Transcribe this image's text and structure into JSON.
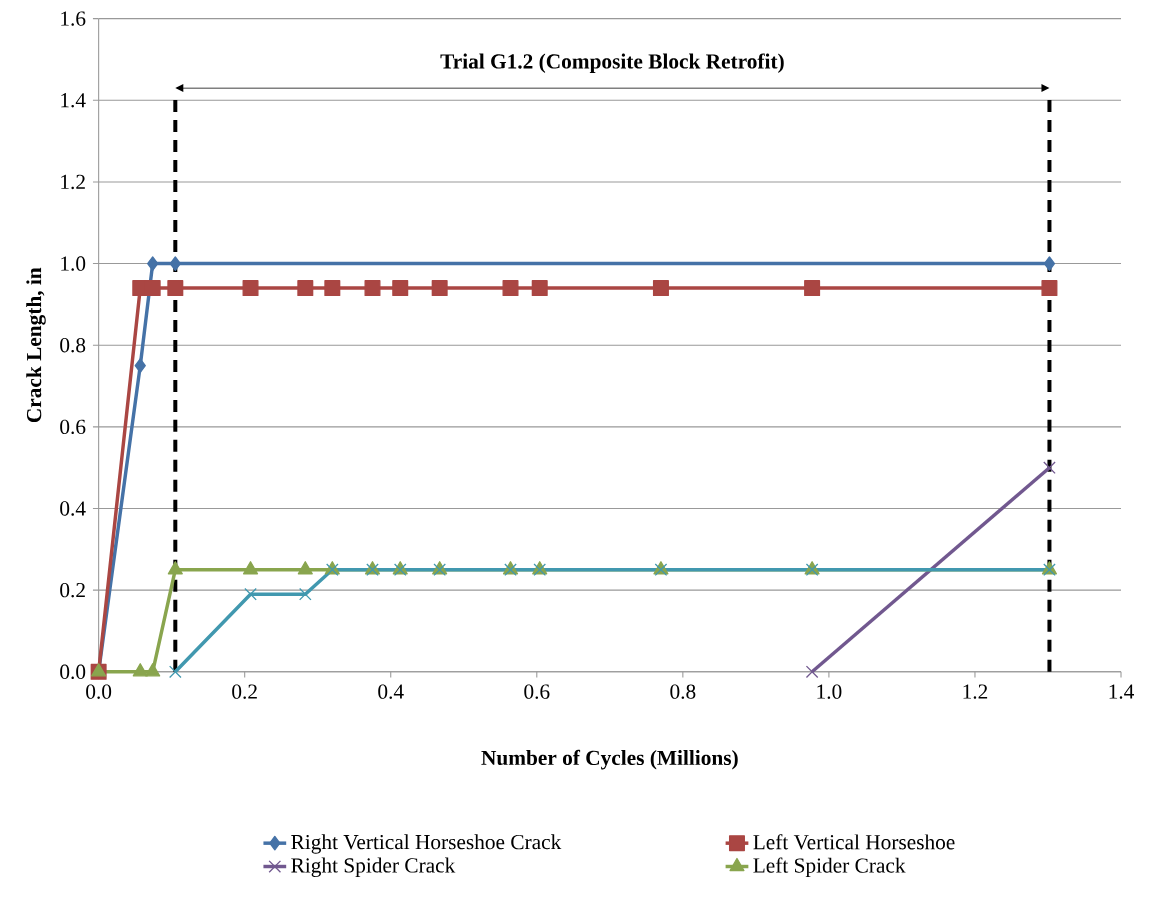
{
  "chart_data": {
    "type": "line",
    "xlabel": "Number of Cycles (Millions)",
    "ylabel": "Crack Length, in",
    "xlim": [
      0,
      1.4
    ],
    "ylim": [
      0,
      1.6
    ],
    "xticks": [
      {
        "value": 0,
        "label": "0.0"
      },
      {
        "value": 0.2,
        "label": "0.2"
      },
      {
        "value": 0.4,
        "label": "0.4"
      },
      {
        "value": 0.6,
        "label": "0.6"
      },
      {
        "value": 0.8,
        "label": "0.8"
      },
      {
        "value": 1.0,
        "label": "1.0"
      },
      {
        "value": 1.2,
        "label": "1.2"
      },
      {
        "value": 1.4,
        "label": "1.4"
      }
    ],
    "yticks": [
      {
        "value": 0,
        "label": "0.0"
      },
      {
        "value": 0.2,
        "label": "0.2"
      },
      {
        "value": 0.4,
        "label": "0.4"
      },
      {
        "value": 0.6,
        "label": "0.6"
      },
      {
        "value": 0.8,
        "label": "0.8"
      },
      {
        "value": 1.0,
        "label": "1.0"
      },
      {
        "value": 1.2,
        "label": "1.2"
      },
      {
        "value": 1.4,
        "label": "1.4"
      },
      {
        "value": 1.6,
        "label": "1.6"
      }
    ],
    "grid": "y",
    "legend": "bottom",
    "annotations": [
      "Trial G1.2 (Composite Block Retrofit)"
    ],
    "ref_lines": [
      {
        "axis": "x",
        "value": 0.105,
        "color": "#000000",
        "line_style": "dashed"
      },
      {
        "axis": "x",
        "value": 1.302,
        "color": "#000000",
        "line_style": "dashed"
      }
    ],
    "series": [
      {
        "name": "Right Vertical Horseshoe Crack",
        "color": "#4572a7",
        "marker": "diamond",
        "x": [
          0,
          0.057,
          0.074,
          0.105,
          1.302
        ],
        "values": [
          0,
          0.75,
          1,
          1,
          1
        ]
      },
      {
        "name": "Left Vertical Horseshoe",
        "color": "#aa4643",
        "marker": "square",
        "x": [
          0,
          0.057,
          0.074,
          0.105,
          0.208,
          0.283,
          0.32,
          0.375,
          0.413,
          0.467,
          0.564,
          0.604,
          0.77,
          0.977,
          1.302
        ],
        "values": [
          0,
          0.94,
          0.94,
          0.94,
          0.94,
          0.94,
          0.94,
          0.94,
          0.94,
          0.94,
          0.94,
          0.94,
          0.94,
          0.94,
          0.94
        ]
      },
      {
        "name": "Right Spider Crack",
        "color": "#71588f",
        "marker": "cross",
        "x": [
          0.977,
          1.302
        ],
        "values": [
          0,
          0.5
        ]
      },
      {
        "name": "Left Spider Crack",
        "color": "#89a54e",
        "marker": "triangle",
        "x": [
          0,
          0.057,
          0.074,
          0.105,
          0.208,
          0.283,
          0.32,
          0.375,
          0.413,
          0.467,
          0.564,
          0.604,
          0.77,
          0.977,
          1.302
        ],
        "values": [
          0,
          0,
          0,
          0.25,
          0.25,
          0.25,
          0.25,
          0.25,
          0.25,
          0.25,
          0.25,
          0.25,
          0.25,
          0.25,
          0.25
        ]
      },
      {
        "color": "#4198af",
        "marker": "cross",
        "x": [
          0.105,
          0.208,
          0.283,
          0.32,
          0.375,
          0.413,
          0.467,
          0.564,
          0.604,
          0.77,
          0.977,
          1.302
        ],
        "values": [
          0,
          0.19,
          0.19,
          0.25,
          0.25,
          0.25,
          0.25,
          0.25,
          0.25,
          0.25,
          0.25,
          0.25
        ]
      }
    ]
  }
}
